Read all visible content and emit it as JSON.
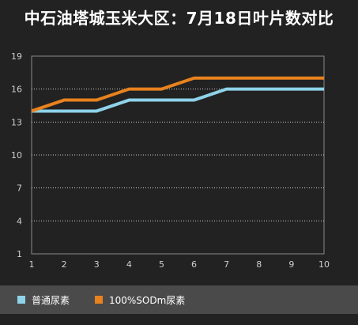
{
  "chart_data": {
    "type": "line",
    "title": "中石油塔城玉米大区：7月18日叶片数对比",
    "x": [
      1,
      2,
      3,
      4,
      5,
      6,
      7,
      8,
      9,
      10
    ],
    "y_ticks": [
      1,
      4,
      7,
      10,
      13,
      16,
      19
    ],
    "ylim": [
      1,
      19
    ],
    "xlim": [
      1,
      10
    ],
    "grid": "horizontal-dotted",
    "legend_position": "bottom",
    "series": [
      {
        "name": "普通尿素",
        "color": "#8fd3ea",
        "values": [
          14,
          14,
          14,
          15,
          15,
          15,
          16,
          16,
          16,
          16
        ]
      },
      {
        "name": "100%SODm尿素",
        "color": "#e8821e",
        "values": [
          14,
          15,
          15,
          16,
          16,
          17,
          17,
          17,
          17,
          17
        ]
      }
    ]
  }
}
